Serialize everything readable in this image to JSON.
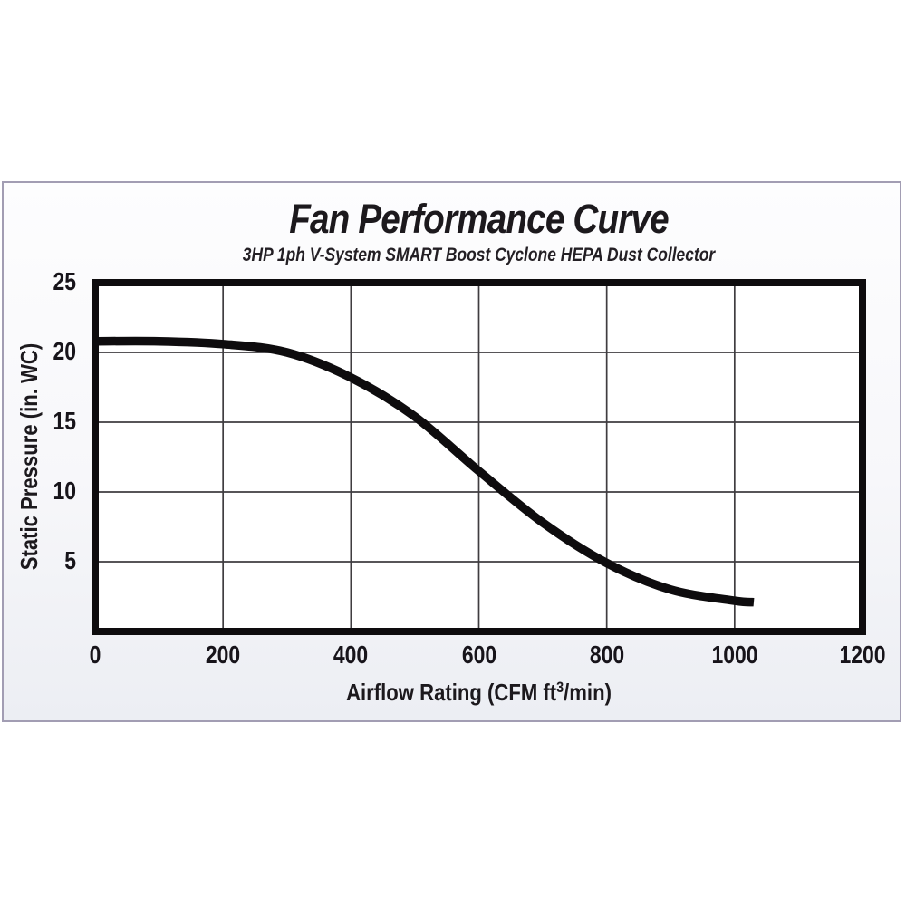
{
  "chart": {
    "title": "Fan Performance Curve",
    "subtitle": "3HP 1ph V-System SMART Boost Cyclone HEPA Dust Collector",
    "ylabel": "Static Pressure (in. WC)",
    "xlabel_prefix": "Airflow Rating (CFM ft",
    "xlabel_sup": "3",
    "xlabel_suffix": "/min)"
  },
  "chart_data": {
    "type": "line",
    "title": "Fan Performance Curve",
    "subtitle": "3HP 1ph V-System SMART Boost Cyclone HEPA Dust Collector",
    "xlabel": "Airflow Rating (CFM ft3/min)",
    "ylabel": "Static Pressure (in. WC)",
    "x": [
      0,
      100,
      200,
      300,
      400,
      500,
      600,
      700,
      800,
      900,
      1000,
      1030
    ],
    "y": [
      20.8,
      20.8,
      20.6,
      20.0,
      18.2,
      15.4,
      11.5,
      7.8,
      4.9,
      3.0,
      2.2,
      2.1
    ],
    "xlim": [
      0,
      1200
    ],
    "ylim": [
      0,
      25
    ],
    "x_ticks": [
      0,
      200,
      400,
      600,
      800,
      1000,
      1200
    ],
    "y_ticks": [
      5,
      10,
      15,
      20,
      25
    ],
    "grid": true,
    "legend": "none",
    "line_color": "#0e0c0e",
    "line_width": 9.5,
    "grid_color": "#3f3d40",
    "frame_color": "#0e0c0e"
  }
}
